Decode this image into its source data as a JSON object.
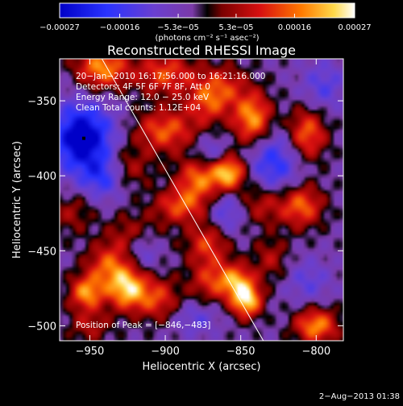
{
  "chart_data": {
    "type": "heatmap",
    "title": "Reconstructed RHESSI Image",
    "xlabel": "Heliocentric X (arcsec)",
    "ylabel": "Heliocentric Y (arcsec)",
    "xlim": [
      -970,
      -782
    ],
    "ylim": [
      -510,
      -322
    ],
    "xticks": [
      -950,
      -900,
      -850,
      -800
    ],
    "yticks": [
      -350,
      -400,
      -450,
      -500
    ],
    "xtick_labels": [
      "−950",
      "−900",
      "−850",
      "−800"
    ],
    "ytick_labels": [
      "−350",
      "−400",
      "−450",
      "−500"
    ],
    "colorbar": {
      "min": -0.00027,
      "max": 0.00027,
      "ticks": [
        -0.00027,
        -0.00016,
        -5.3e-05,
        5.3e-05,
        0.00016,
        0.00027
      ],
      "tick_labels": [
        "−0.00027",
        "−0.00016",
        "−5.3e−05",
        "5.3e−05",
        "0.00016",
        "0.00027"
      ],
      "units": "(photons cm⁻² s⁻¹ asec⁻²)"
    },
    "annotations": [
      "20−Jan−2010 16:17:56.000 to 16:21:16.000",
      "Detectors: 4F 5F 6F 7F 8F, Att 0",
      "Energy Range: 12.0 − 25.0 keV",
      "Clean    Total counts: 1.12E+04",
      "Position of Peak = [−846,−483]"
    ],
    "peak": {
      "x": -846,
      "y": -483
    },
    "marker": {
      "x": -954,
      "y": -375
    },
    "limb_line": [
      {
        "x": -942,
        "y": -322
      },
      {
        "x": -835,
        "y": -510
      }
    ],
    "blobs": [
      {
        "x": -942,
        "y": -328,
        "v": 0.8,
        "sx": 12,
        "sy": 10
      },
      {
        "x": -900,
        "y": -332,
        "v": 0.6,
        "sx": 14,
        "sy": 10
      },
      {
        "x": -862,
        "y": -340,
        "v": 0.45,
        "sx": 12,
        "sy": 10
      },
      {
        "x": -842,
        "y": -362,
        "v": 0.85,
        "sx": 9,
        "sy": 12
      },
      {
        "x": -900,
        "y": -370,
        "v": 0.65,
        "sx": 14,
        "sy": 10
      },
      {
        "x": -872,
        "y": -352,
        "v": 0.5,
        "sx": 10,
        "sy": 10
      },
      {
        "x": -806,
        "y": -372,
        "v": 0.7,
        "sx": 9,
        "sy": 12
      },
      {
        "x": -928,
        "y": -395,
        "v": 0.45,
        "sx": 12,
        "sy": 10
      },
      {
        "x": -878,
        "y": -402,
        "v": 0.7,
        "sx": 10,
        "sy": 10
      },
      {
        "x": -858,
        "y": -398,
        "v": 0.95,
        "sx": 8,
        "sy": 8
      },
      {
        "x": -890,
        "y": -420,
        "v": 0.6,
        "sx": 12,
        "sy": 8
      },
      {
        "x": -835,
        "y": -418,
        "v": 0.45,
        "sx": 10,
        "sy": 10
      },
      {
        "x": -810,
        "y": -420,
        "v": 0.7,
        "sx": 10,
        "sy": 10
      },
      {
        "x": -962,
        "y": -425,
        "v": 0.3,
        "sx": 10,
        "sy": 10
      },
      {
        "x": -920,
        "y": -440,
        "v": 0.45,
        "sx": 12,
        "sy": 10
      },
      {
        "x": -872,
        "y": -445,
        "v": 0.55,
        "sx": 10,
        "sy": 10
      },
      {
        "x": -938,
        "y": -460,
        "v": 0.6,
        "sx": 10,
        "sy": 10
      },
      {
        "x": -952,
        "y": -478,
        "v": 0.8,
        "sx": 8,
        "sy": 8
      },
      {
        "x": -925,
        "y": -475,
        "v": 0.95,
        "sx": 9,
        "sy": 10
      },
      {
        "x": -905,
        "y": -482,
        "v": 0.55,
        "sx": 10,
        "sy": 10
      },
      {
        "x": -870,
        "y": -470,
        "v": 0.5,
        "sx": 10,
        "sy": 10
      },
      {
        "x": -846,
        "y": -483,
        "v": 1.0,
        "sx": 7,
        "sy": 8
      },
      {
        "x": -853,
        "y": -470,
        "v": 0.7,
        "sx": 8,
        "sy": 8
      },
      {
        "x": -800,
        "y": -500,
        "v": 0.8,
        "sx": 10,
        "sy": 8
      },
      {
        "x": -950,
        "y": -500,
        "v": 0.35,
        "sx": 10,
        "sy": 8
      },
      {
        "x": -830,
        "y": -455,
        "v": 0.35,
        "sx": 8,
        "sy": 10
      },
      {
        "x": -955,
        "y": -375,
        "v": -1.0,
        "sx": 14,
        "sy": 16
      },
      {
        "x": -940,
        "y": -400,
        "v": -0.6,
        "sx": 10,
        "sy": 10
      },
      {
        "x": -828,
        "y": -392,
        "v": -0.55,
        "sx": 12,
        "sy": 16
      },
      {
        "x": -795,
        "y": -340,
        "v": -0.35,
        "sx": 10,
        "sy": 12
      },
      {
        "x": -915,
        "y": -448,
        "v": -0.45,
        "sx": 8,
        "sy": 10
      },
      {
        "x": -870,
        "y": -385,
        "v": -0.35,
        "sx": 8,
        "sy": 8
      },
      {
        "x": -860,
        "y": -425,
        "v": -0.4,
        "sx": 8,
        "sy": 10
      },
      {
        "x": -805,
        "y": -470,
        "v": -0.3,
        "sx": 10,
        "sy": 10
      },
      {
        "x": -880,
        "y": -495,
        "v": -0.3,
        "sx": 10,
        "sy": 8
      }
    ]
  },
  "footer": {
    "timestamp": "2−Aug−2013 01:38"
  }
}
